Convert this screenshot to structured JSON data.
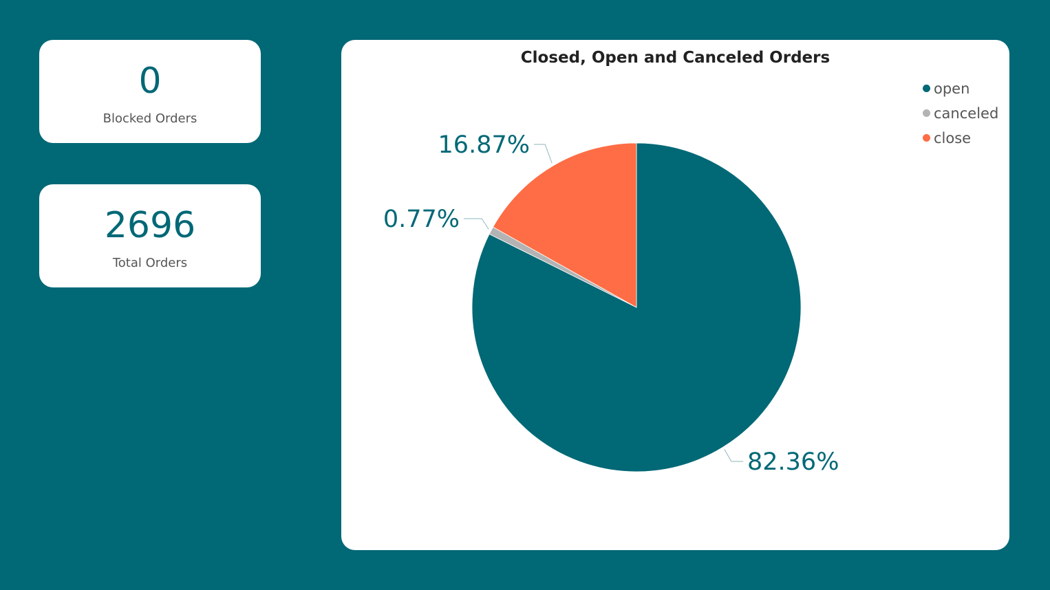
{
  "kpis": {
    "blocked": {
      "value": "0",
      "label": "Blocked Orders"
    },
    "total": {
      "value": "2696",
      "label": "Total Orders"
    }
  },
  "chart_data": {
    "type": "pie",
    "title": "Closed, Open and Canceled Orders",
    "legend_position": "top-right",
    "slices": [
      {
        "name": "open",
        "value": 82.36,
        "label": "82.36%",
        "color": "#016876"
      },
      {
        "name": "canceled",
        "value": 0.77,
        "label": "0.77%",
        "color": "#b3b3b3"
      },
      {
        "name": "close",
        "value": 16.87,
        "label": "16.87%",
        "color": "#fe6d45"
      }
    ]
  }
}
